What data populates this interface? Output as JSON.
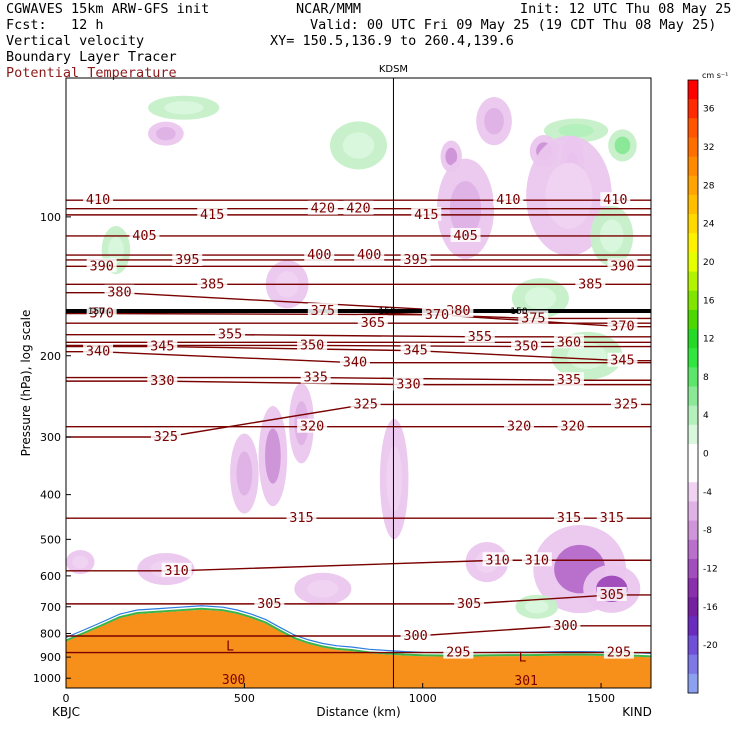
{
  "header": {
    "model": "CGWAVES 15km ARW-GFS init",
    "center": "NCAR/MMM",
    "init": "Init: 12 UTC Thu 08 May 25",
    "fcst": "Fcst:   12 h",
    "valid": "Valid: 00 UTC Fri 09 May 25 (19 CDT Thu 08 May 25)",
    "field1": "Vertical velocity",
    "field2": "Boundary Layer Tracer",
    "field3": "Potential Temperature",
    "xy": "XY= 150.5,136.9 to 260.4,139.6"
  },
  "colors": {
    "theta": "#7a0000",
    "terrain": "#f78f1b",
    "field3_text": "#8b1a1a"
  },
  "chart_data": {
    "type": "heatmap",
    "ylabel": "Pressure (hPa), log scale",
    "xlabel": "Distance (km)",
    "xlim": [
      0,
      1640
    ],
    "ylim_hpa": [
      1050,
      50
    ],
    "y_scale": "log",
    "x_ticks": [
      0,
      500,
      1000,
      1500
    ],
    "y_ticks": [
      100,
      200,
      300,
      400,
      500,
      600,
      700,
      800,
      900,
      1000
    ],
    "x_start_label": "KBJC",
    "x_end_label": "KIND",
    "station_marker": {
      "label": "KDSM",
      "x_km": 918
    },
    "colorbar": {
      "unit": "cm s⁻¹",
      "labels": [
        36,
        32,
        28,
        24,
        20,
        16,
        12,
        8,
        4,
        0,
        -4,
        -8,
        -12,
        -16,
        -20
      ],
      "colors": [
        "#ff0000",
        "#ff2a00",
        "#ff5500",
        "#ff6f00",
        "#ff8a00",
        "#ffa400",
        "#ffbf00",
        "#ffd900",
        "#fff200",
        "#e6ff00",
        "#b3f200",
        "#80e600",
        "#4dd900",
        "#26d926",
        "#33e63f",
        "#5ce66b",
        "#8ae897",
        "#b4f0bc",
        "#d9f7dc",
        "#ffffff",
        "#ffffff",
        "#f0d2f2",
        "#e0b3e6",
        "#cf95d9",
        "#b970cc",
        "#a24ebd",
        "#8a30ad",
        "#7520a0",
        "#6a2bbf",
        "#7050d6",
        "#7d78e6",
        "#8ca0f0"
      ]
    },
    "theta_contours": [
      {
        "value": 410,
        "label_at_km": [
          90,
          1240,
          1540
        ],
        "p": [
          92,
          92,
          92
        ]
      },
      {
        "value": 420,
        "label_at_km": [
          720,
          820
        ],
        "p": [
          96,
          96
        ]
      },
      {
        "value": 415,
        "label_at_km": [
          410,
          1010
        ],
        "p": [
          99,
          99
        ]
      },
      {
        "value": 405,
        "label_at_km": [
          220,
          1120
        ],
        "p": [
          110,
          110
        ]
      },
      {
        "value": 400,
        "label_at_km": [
          710,
          850
        ],
        "p": [
          121,
          121
        ]
      },
      {
        "value": 395,
        "label_at_km": [
          340,
          980
        ],
        "p": [
          124,
          124
        ]
      },
      {
        "value": 390,
        "label_at_km": [
          100,
          1560
        ],
        "p": [
          128,
          128
        ]
      },
      {
        "value": 385,
        "label_at_km": [
          410,
          1470
        ],
        "p": [
          140,
          140
        ]
      },
      {
        "value": 380,
        "label_at_km": [
          150,
          1100
        ],
        "p": [
          146,
          160
        ]
      },
      {
        "value": 375,
        "label_at_km": [
          720,
          1310
        ],
        "p": [
          160,
          166
        ]
      },
      {
        "value": 370,
        "label_at_km": [
          100,
          1040,
          1560
        ],
        "p": [
          162,
          163,
          173
        ]
      },
      {
        "value": 365,
        "label_at_km": [
          860
        ],
        "p": [
          170
        ]
      },
      {
        "value": 360,
        "label_at_km": [
          1410
        ],
        "p": [
          187
        ]
      },
      {
        "value": 355,
        "label_at_km": [
          460,
          1160
        ],
        "p": [
          180,
          182
        ]
      },
      {
        "value": 350,
        "label_at_km": [
          690,
          1290
        ],
        "p": [
          190,
          191
        ]
      },
      {
        "value": 345,
        "label_at_km": [
          270,
          980,
          1560
        ],
        "p": [
          191,
          195,
          205
        ]
      },
      {
        "value": 340,
        "label_at_km": [
          90,
          810
        ],
        "p": [
          196,
          207
        ]
      },
      {
        "value": 335,
        "label_at_km": [
          700,
          1410
        ],
        "p": [
          223,
          226
        ]
      },
      {
        "value": 330,
        "label_at_km": [
          270,
          960
        ],
        "p": [
          227,
          231
        ]
      },
      {
        "value": 325,
        "label_at_km": [
          280,
          840,
          1570
        ],
        "p": [
          300,
          255,
          255
        ]
      },
      {
        "value": 320,
        "label_at_km": [
          690,
          1270,
          1420
        ],
        "p": [
          285,
          285,
          285
        ]
      },
      {
        "value": 315,
        "label_at_km": [
          660,
          1410,
          1530
        ],
        "p": [
          450,
          450,
          450
        ]
      },
      {
        "value": 310,
        "label_at_km": [
          310,
          1210,
          1320
        ],
        "p": [
          585,
          555,
          555
        ]
      },
      {
        "value": 305,
        "label_at_km": [
          570,
          1130,
          1530
        ],
        "p": [
          690,
          690,
          660
        ]
      },
      {
        "value": 300,
        "label_at_km": [
          980,
          1400
        ],
        "p": [
          810,
          770
        ]
      },
      {
        "value": 295,
        "label_at_km": [
          1100,
          1550
        ],
        "p": [
          880,
          880
        ]
      }
    ],
    "tropopause_hpa": 160,
    "tropopause_labels": [
      {
        "text": "150",
        "x_km": 85
      },
      {
        "text": "150",
        "x_km": 900
      },
      {
        "text": "150",
        "x_km": 1270
      }
    ],
    "terrain_labels": [
      {
        "text": "L",
        "x_km": 460,
        "p": 870
      },
      {
        "text": "L",
        "x_km": 1280,
        "p": 920
      },
      {
        "text": "300",
        "x_km": 470,
        "p": 1030
      },
      {
        "text": "301",
        "x_km": 1290,
        "p": 1035
      }
    ],
    "terrain_surface_hpa": {
      "x": [
        0,
        50,
        100,
        150,
        200,
        260,
        320,
        380,
        440,
        480,
        520,
        560,
        600,
        640,
        680,
        720,
        760,
        800,
        850,
        900,
        950,
        1000,
        1050,
        1100,
        1150,
        1200,
        1250,
        1300,
        1350,
        1400,
        1450,
        1500,
        1550,
        1600,
        1640
      ],
      "p": [
        820,
        790,
        760,
        730,
        715,
        710,
        705,
        700,
        705,
        715,
        730,
        750,
        780,
        810,
        830,
        845,
        855,
        860,
        870,
        875,
        880,
        883,
        884,
        885,
        884,
        883,
        882,
        882,
        881,
        880,
        880,
        881,
        882,
        885,
        888
      ]
    },
    "velocity_blobs": [
      {
        "x": 330,
        "p": 58,
        "rx": 100,
        "rp": 0.06,
        "w": 3
      },
      {
        "x": 1430,
        "p": 65,
        "rx": 90,
        "rp": 0.06,
        "w": 6
      },
      {
        "x": 1200,
        "p": 62,
        "rx": 50,
        "rp": 0.12,
        "w": -4
      },
      {
        "x": 1420,
        "p": 80,
        "rx": 35,
        "rp": 0.18,
        "w": -8
      },
      {
        "x": 1340,
        "p": 72,
        "rx": 40,
        "rp": 0.08,
        "w": -6
      },
      {
        "x": 1560,
        "p": 70,
        "rx": 40,
        "rp": 0.08,
        "w": 8
      },
      {
        "x": 1080,
        "p": 74,
        "rx": 30,
        "rp": 0.08,
        "w": -6
      },
      {
        "x": 820,
        "p": 70,
        "rx": 80,
        "rp": 0.12,
        "w": 3
      },
      {
        "x": 280,
        "p": 66,
        "rx": 50,
        "rp": 0.06,
        "w": -4
      },
      {
        "x": 1120,
        "p": 96,
        "rx": 80,
        "rp": 0.25,
        "w": -4
      },
      {
        "x": 1410,
        "p": 90,
        "rx": 120,
        "rp": 0.3,
        "w": -3
      },
      {
        "x": 1530,
        "p": 110,
        "rx": 60,
        "rp": 0.15,
        "w": 4
      },
      {
        "x": 140,
        "p": 118,
        "rx": 40,
        "rp": 0.12,
        "w": 3
      },
      {
        "x": 620,
        "p": 140,
        "rx": 60,
        "rp": 0.12,
        "w": -3
      },
      {
        "x": 1330,
        "p": 150,
        "rx": 80,
        "rp": 0.1,
        "w": 4
      },
      {
        "x": 1460,
        "p": 200,
        "rx": 100,
        "rp": 0.12,
        "w": 3
      },
      {
        "x": 580,
        "p": 330,
        "rx": 40,
        "rp": 0.25,
        "w": -7
      },
      {
        "x": 660,
        "p": 280,
        "rx": 35,
        "rp": 0.2,
        "w": -5
      },
      {
        "x": 500,
        "p": 360,
        "rx": 40,
        "rp": 0.2,
        "w": -4
      },
      {
        "x": 920,
        "p": 370,
        "rx": 40,
        "rp": 0.3,
        "w": -3
      },
      {
        "x": 1440,
        "p": 580,
        "rx": 130,
        "rp": 0.22,
        "w": -8
      },
      {
        "x": 1530,
        "p": 640,
        "rx": 80,
        "rp": 0.12,
        "w": -11
      },
      {
        "x": 1180,
        "p": 560,
        "rx": 60,
        "rp": 0.1,
        "w": -3
      },
      {
        "x": 280,
        "p": 580,
        "rx": 80,
        "rp": 0.08,
        "w": -3
      },
      {
        "x": 720,
        "p": 640,
        "rx": 80,
        "rp": 0.08,
        "w": -3
      },
      {
        "x": 1320,
        "p": 700,
        "rx": 60,
        "rp": 0.06,
        "w": 3
      },
      {
        "x": 40,
        "p": 560,
        "rx": 40,
        "rp": 0.06,
        "w": -3
      }
    ]
  }
}
